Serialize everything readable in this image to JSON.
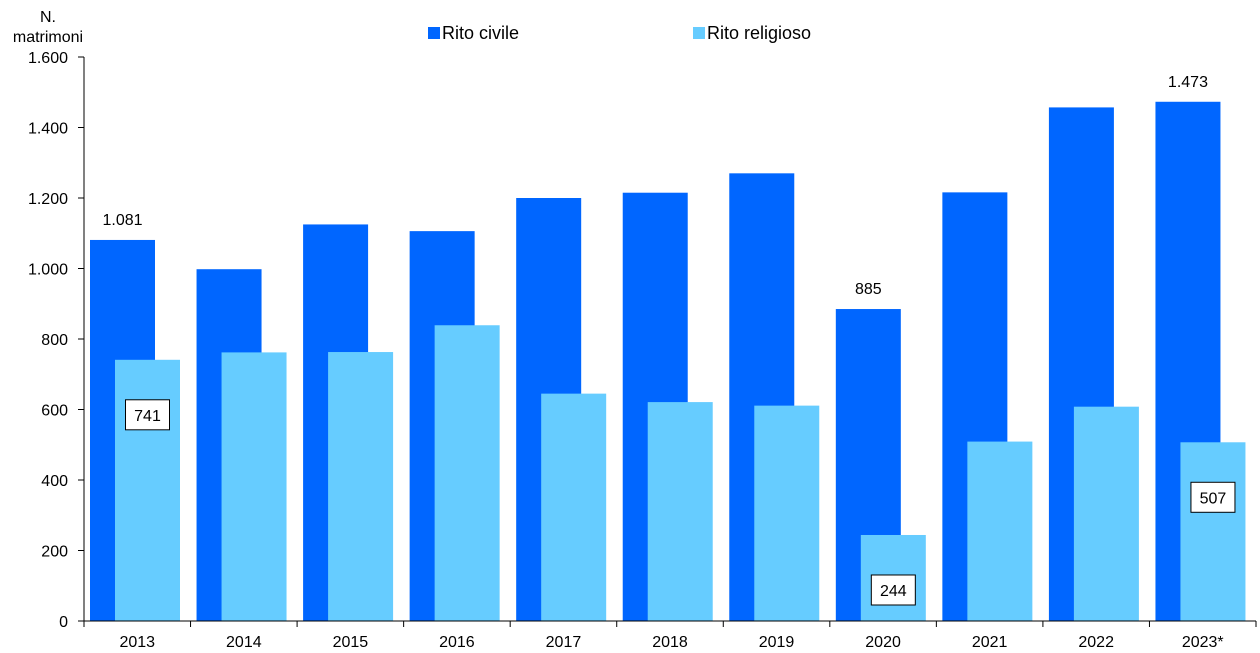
{
  "chart_data": {
    "type": "bar",
    "title": "",
    "xlabel": "",
    "ylabel_lines": [
      "N.",
      "matrimoni"
    ],
    "categories": [
      "2013",
      "2014",
      "2015",
      "2016",
      "2017",
      "2018",
      "2019",
      "2020",
      "2021",
      "2022",
      "2023*"
    ],
    "series": [
      {
        "name": "Rito civile",
        "color": "#0066FF",
        "values": [
          1081,
          998,
          1125,
          1106,
          1200,
          1215,
          1270,
          885,
          1216,
          1457,
          1473
        ]
      },
      {
        "name": "Rito religioso",
        "color": "#66CCFF",
        "values": [
          741,
          762,
          763,
          839,
          645,
          621,
          611,
          244,
          509,
          608,
          507
        ]
      }
    ],
    "ylim": [
      0,
      1600
    ],
    "yticks": [
      0,
      200,
      400,
      600,
      800,
      1000,
      1200,
      1400,
      1600
    ],
    "ytick_labels": [
      "0",
      "200",
      "400",
      "600",
      "800",
      "1.000",
      "1.200",
      "1.400",
      "1.600"
    ],
    "grid": false,
    "legend_position": "top-center",
    "data_labels": [
      {
        "series": 0,
        "index": 0,
        "text": "1.081",
        "boxed": false
      },
      {
        "series": 0,
        "index": 7,
        "text": "885",
        "boxed": false
      },
      {
        "series": 0,
        "index": 10,
        "text": "1.473",
        "boxed": false
      },
      {
        "series": 1,
        "index": 0,
        "text": "741",
        "boxed": true
      },
      {
        "series": 1,
        "index": 7,
        "text": "244",
        "boxed": true
      },
      {
        "series": 1,
        "index": 10,
        "text": "507",
        "boxed": true
      }
    ]
  }
}
